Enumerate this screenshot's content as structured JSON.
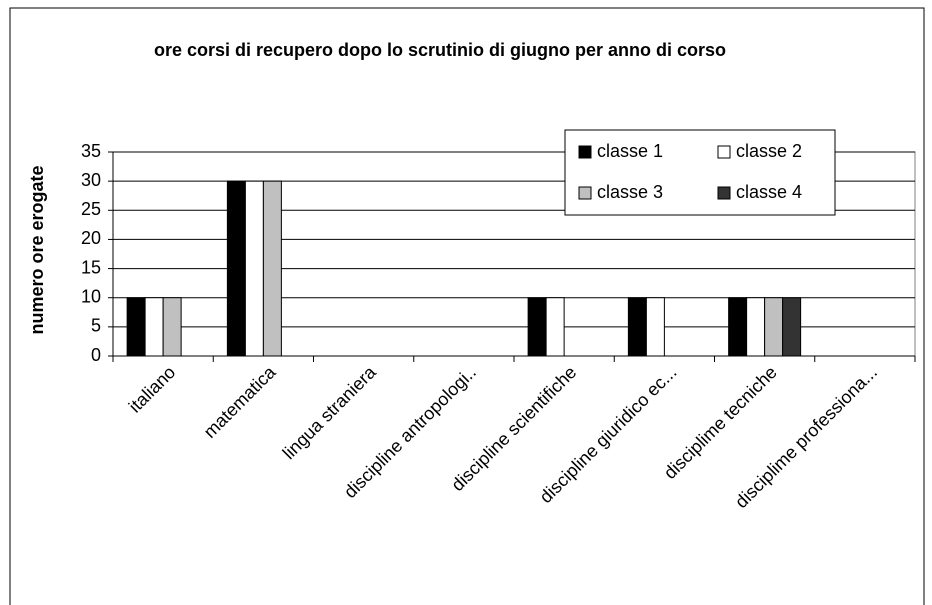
{
  "chart_data": {
    "type": "bar",
    "title": "ore corsi di recupero dopo lo scrutinio di giugno per anno di corso",
    "y_label": "numero ore erogate",
    "categories": [
      "italiano",
      "matematica",
      "lingua straniera",
      "discipline antropologi..",
      "discipline scientifiche",
      "discipline giuridico ec...",
      "disciplime tecniche",
      "disciplime professiona..."
    ],
    "series": [
      {
        "name": "classe 1",
        "color": "#000000",
        "values": [
          10,
          30,
          0,
          0,
          10,
          10,
          10,
          0
        ]
      },
      {
        "name": "classe 2",
        "color": "#ffffff",
        "values": [
          10,
          30,
          0,
          0,
          10,
          10,
          10,
          0
        ]
      },
      {
        "name": "classe 3",
        "color": "#c0c0c0",
        "values": [
          10,
          30,
          0,
          0,
          0,
          0,
          10,
          0
        ]
      },
      {
        "name": "classe 4",
        "color": "#333333",
        "values": [
          0,
          0,
          0,
          0,
          0,
          0,
          10,
          0
        ]
      }
    ],
    "ylim": [
      0,
      35
    ],
    "yticks": [
      0,
      5,
      10,
      15,
      20,
      25,
      30,
      35
    ],
    "grid": true,
    "legend": "upper right"
  }
}
